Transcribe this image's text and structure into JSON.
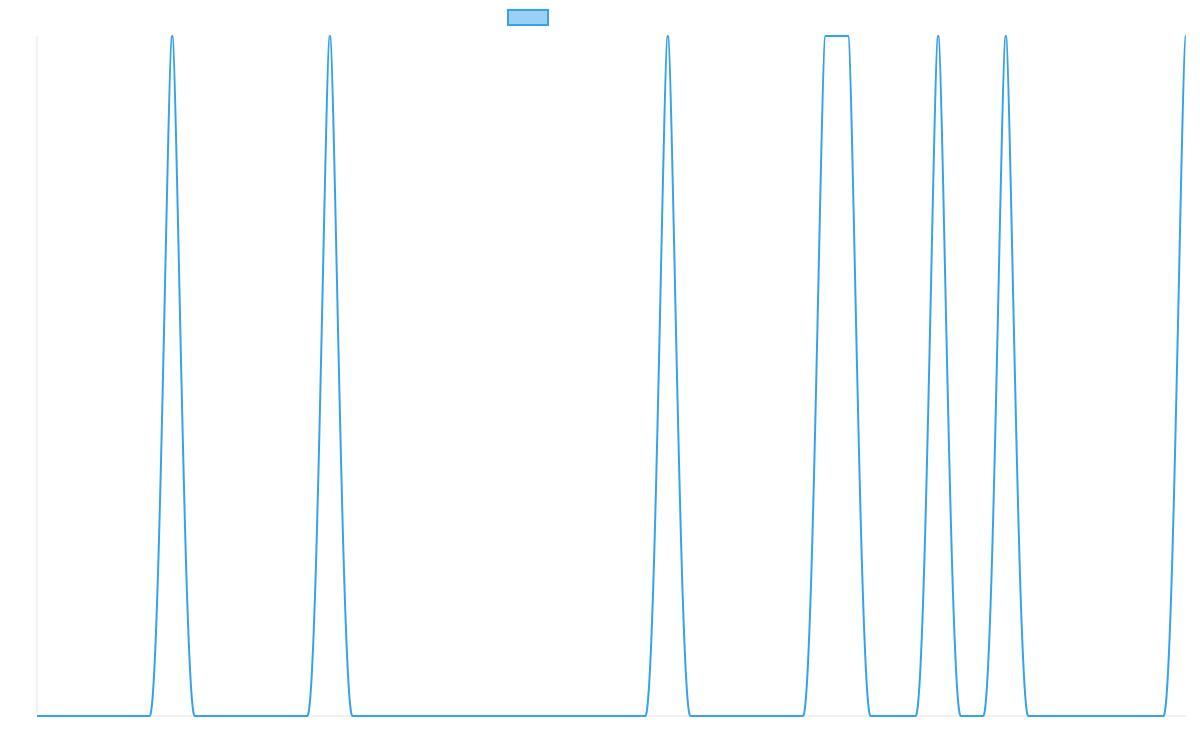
{
  "chart_data": {
    "type": "line",
    "title": "",
    "xlabel": "",
    "ylabel": "",
    "legend": {
      "placement": "top-center",
      "show_label": false
    },
    "x": [
      0,
      10,
      12,
      14,
      24,
      26,
      28,
      54,
      56,
      58,
      68,
      70,
      70.5,
      71.5,
      72,
      74,
      78,
      80,
      82,
      84,
      86,
      88,
      100,
      102
    ],
    "series": [
      {
        "color": "#36A2EB",
        "fill": "#9AD0F5",
        "values": [
          0,
          0,
          1,
          0,
          0,
          1,
          0,
          0,
          1,
          0,
          0,
          1,
          1,
          1,
          1,
          0,
          0,
          1,
          0,
          0,
          1,
          0,
          0,
          1
        ]
      }
    ],
    "xlim": [
      0,
      102
    ],
    "ylim": [
      0,
      1
    ],
    "grid": false,
    "curve": "smooth-peaks"
  }
}
